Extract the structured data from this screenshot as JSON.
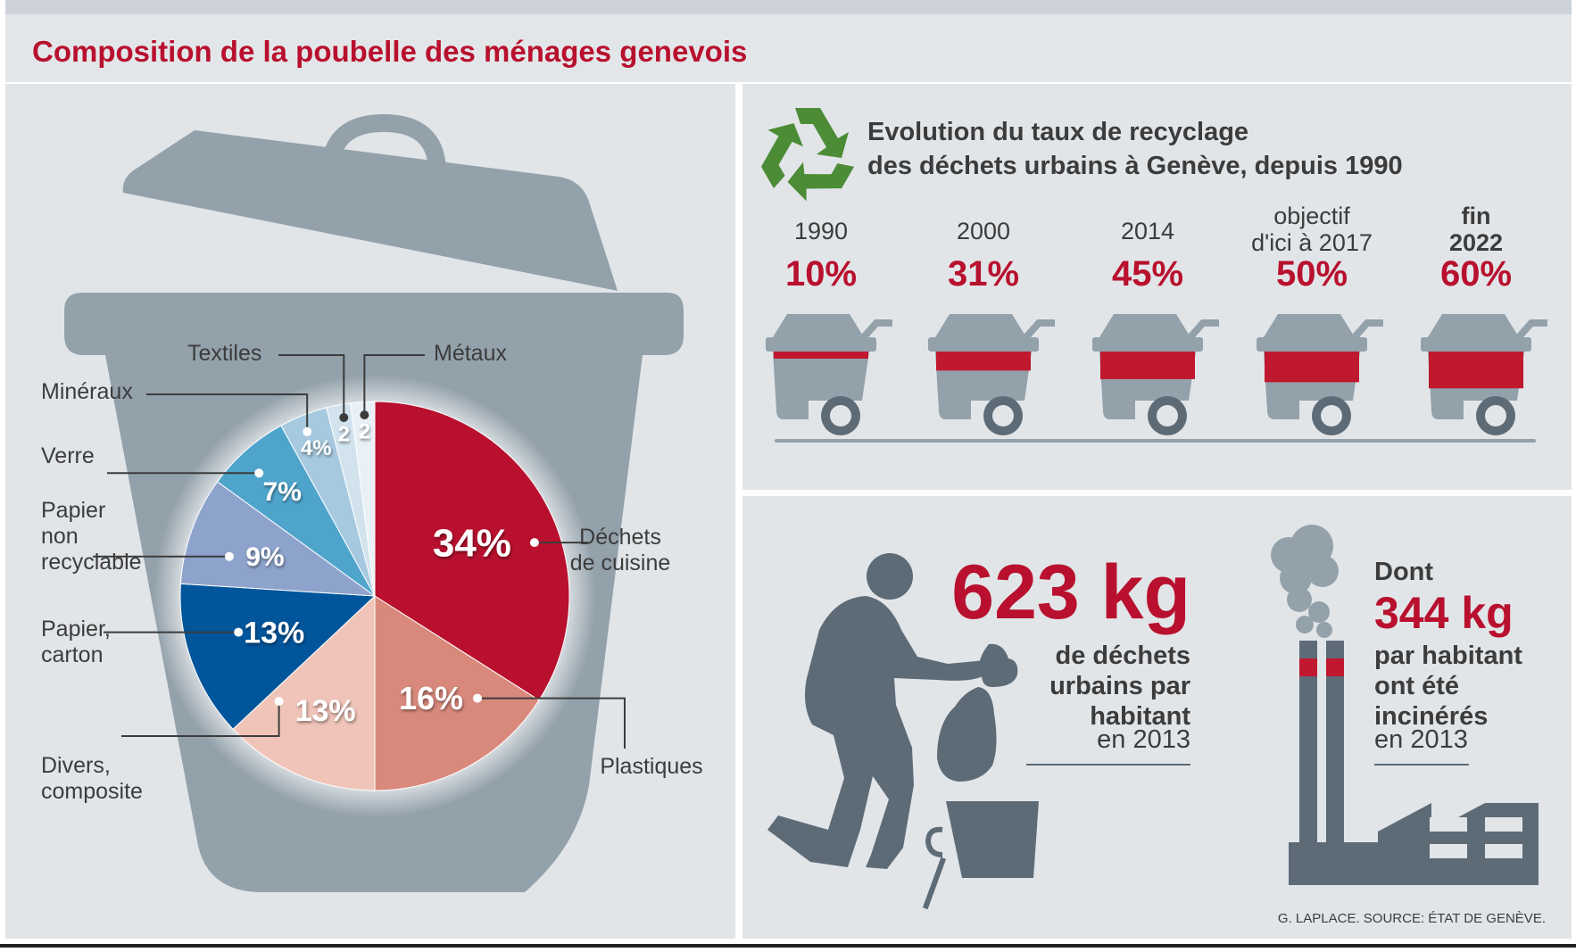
{
  "title": "Composition de la poubelle des ménages genevois",
  "recycling": {
    "title_line1": "Evolution du taux de recyclage",
    "title_line2": "des déchets urbains à Genève, depuis 1990",
    "items": [
      {
        "year_lines": [
          "1990"
        ],
        "bold": false,
        "rate": "10%"
      },
      {
        "year_lines": [
          "2000"
        ],
        "bold": false,
        "rate": "31%"
      },
      {
        "year_lines": [
          "2014"
        ],
        "bold": false,
        "rate": "45%"
      },
      {
        "year_lines": [
          "objectif",
          "d'ici à 2017"
        ],
        "bold": false,
        "rate": "50%"
      },
      {
        "year_lines": [
          "fin",
          "2022"
        ],
        "bold": true,
        "rate": "60%"
      }
    ]
  },
  "stats": {
    "per_capita_value": "623 kg",
    "per_capita_lines": [
      "de déchets",
      "urbains par",
      "habitant"
    ],
    "per_capita_year": "en 2013",
    "incinerated_prefix": "Dont",
    "incinerated_value": "344 kg",
    "incinerated_lines": [
      "par habitant",
      "ont été",
      "incinérés"
    ],
    "incinerated_year": "en 2013"
  },
  "source": "G. LAPLACE. SOURCE: ÉTAT DE GENÈVE.",
  "colors": {
    "accent_red": "#b8102e",
    "panel_bg": "#e2e5e8",
    "bin_gray": "#93a1ab",
    "silhouette": "#5d6b77"
  },
  "chart_data": [
    {
      "type": "pie",
      "title": "Composition de la poubelle des ménages genevois",
      "unit": "%",
      "slices": [
        {
          "label": "Déchets de cuisine",
          "label_lines": [
            "Déchets",
            "de cuisine"
          ],
          "value": 34,
          "value_label": "34%",
          "color": "#b8102e"
        },
        {
          "label": "Plastiques",
          "label_lines": [
            "Plastiques"
          ],
          "value": 16,
          "value_label": "16%",
          "color": "#d9897c"
        },
        {
          "label": "Divers, composite",
          "label_lines": [
            "Divers,",
            "composite"
          ],
          "value": 13,
          "value_label": "13%",
          "color": "#f0c4b8"
        },
        {
          "label": "Papier, carton",
          "label_lines": [
            "Papier,",
            "carton"
          ],
          "value": 13,
          "value_label": "13%",
          "color": "#00559b"
        },
        {
          "label": "Papier non recyclable",
          "label_lines": [
            "Papier",
            "non",
            "recyclable"
          ],
          "value": 9,
          "value_label": "9%",
          "color": "#8ea3cc"
        },
        {
          "label": "Verre",
          "label_lines": [
            "Verre"
          ],
          "value": 7,
          "value_label": "7%",
          "color": "#4fa4cc"
        },
        {
          "label": "Minéraux",
          "label_lines": [
            "Minéraux"
          ],
          "value": 4,
          "value_label": "4%",
          "color": "#a6c9e0"
        },
        {
          "label": "Textiles",
          "label_lines": [
            "Textiles"
          ],
          "value": 2,
          "value_label": "2",
          "color": "#d2e3ee"
        },
        {
          "label": "Métaux",
          "label_lines": [
            "Métaux"
          ],
          "value": 2,
          "value_label": "2",
          "color": "#e9f1f6"
        }
      ]
    },
    {
      "type": "bar",
      "title": "Evolution du taux de recyclage des déchets urbains à Genève, depuis 1990",
      "categories": [
        "1990",
        "2000",
        "2014",
        "objectif d'ici à 2017",
        "fin 2022"
      ],
      "values": [
        10,
        31,
        45,
        50,
        60
      ],
      "unit": "%",
      "ylim": [
        0,
        100
      ]
    },
    {
      "type": "table",
      "rows": [
        {
          "label": "déchets urbains par habitant en 2013",
          "value": 623,
          "unit": "kg"
        },
        {
          "label": "par habitant incinérés en 2013",
          "value": 344,
          "unit": "kg"
        }
      ]
    }
  ]
}
